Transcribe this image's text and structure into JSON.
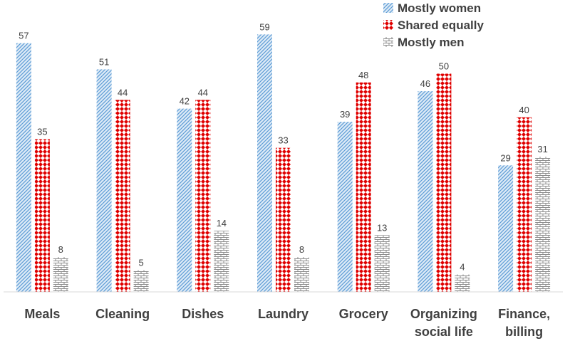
{
  "chart_data": {
    "type": "bar",
    "title": "",
    "xlabel": "",
    "ylabel": "",
    "ylim": [
      0,
      62
    ],
    "grid": false,
    "legend_position": "top-right",
    "categories": [
      [
        "Meals"
      ],
      [
        "Cleaning"
      ],
      [
        "Dishes"
      ],
      [
        "Laundry"
      ],
      [
        "Grocery"
      ],
      [
        "Organizing",
        "social life"
      ],
      [
        "Finance,",
        "billing"
      ]
    ],
    "series": [
      {
        "name": "Mostly women",
        "color": "#9dc3e6",
        "pattern": "diagonal-hatch",
        "values": [
          57,
          51,
          42,
          59,
          39,
          46,
          29
        ]
      },
      {
        "name": "Shared equally",
        "color": "#e00000",
        "pattern": "diamond-dots",
        "values": [
          35,
          44,
          44,
          33,
          48,
          50,
          40
        ]
      },
      {
        "name": "Mostly men",
        "color": "#a6a6a6",
        "pattern": "brick",
        "values": [
          8,
          5,
          14,
          8,
          13,
          4,
          31
        ]
      }
    ]
  }
}
